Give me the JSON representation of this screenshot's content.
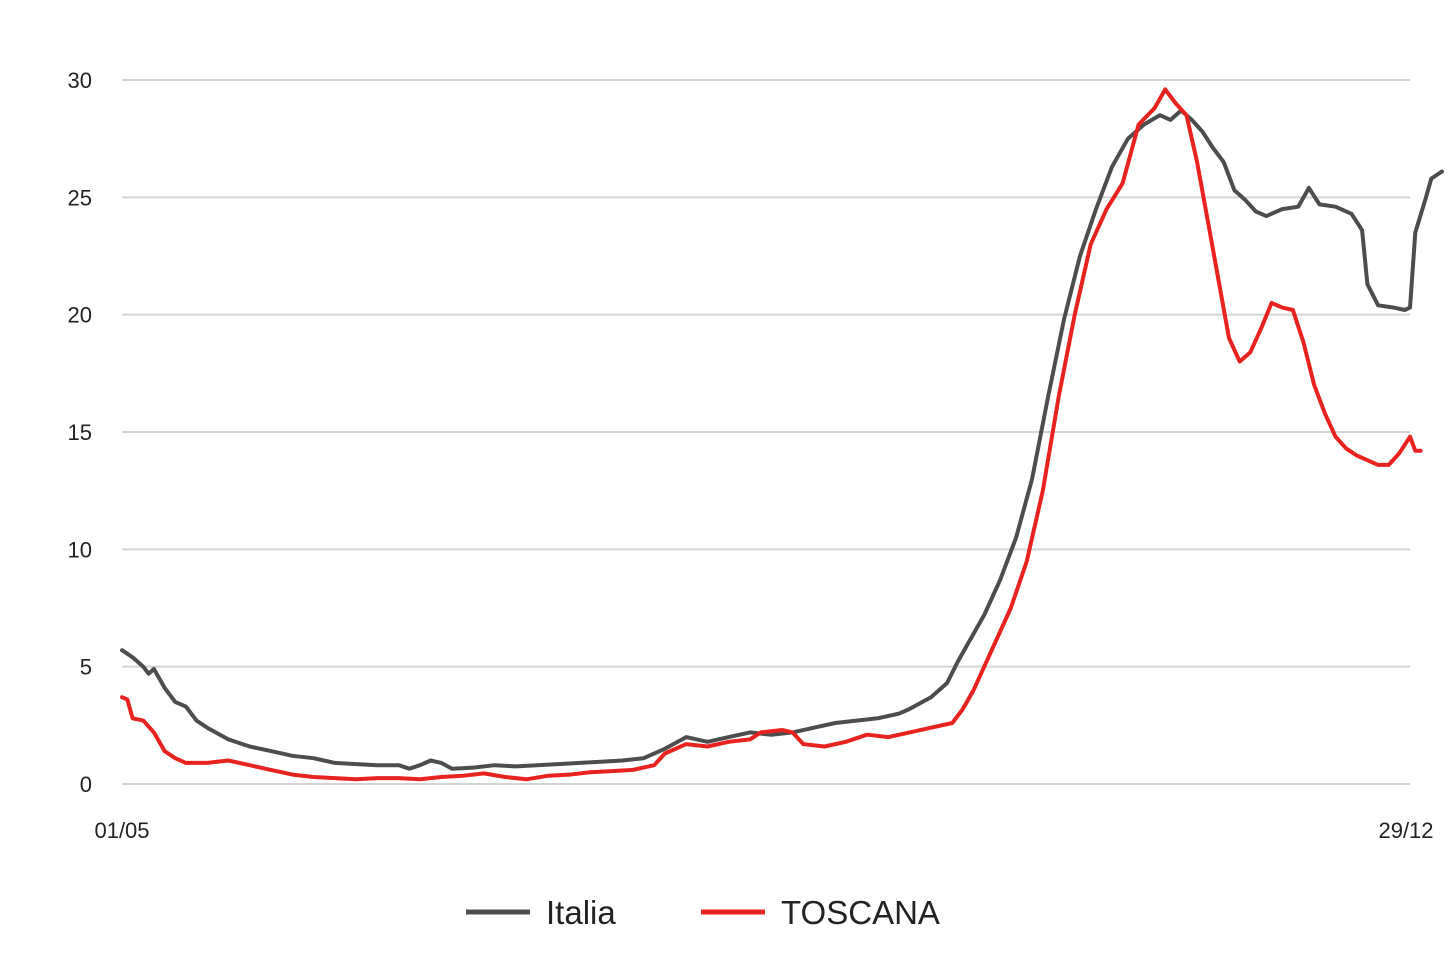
{
  "chart_data": {
    "type": "line",
    "x_tick_labels": [
      "01/05",
      "29/12"
    ],
    "x_range_days": [
      0,
      242
    ],
    "ylim": [
      0,
      30
    ],
    "y_ticks": [
      0,
      5,
      10,
      15,
      20,
      25,
      30
    ],
    "grid": "horizontal",
    "legend_position": "bottom",
    "series": [
      {
        "name": "Italia",
        "color": "#4d4d4d",
        "points": [
          [
            0,
            5.7
          ],
          [
            2,
            5.4
          ],
          [
            4,
            5.0
          ],
          [
            5,
            4.7
          ],
          [
            6,
            4.9
          ],
          [
            8,
            4.1
          ],
          [
            10,
            3.5
          ],
          [
            12,
            3.3
          ],
          [
            14,
            2.7
          ],
          [
            16,
            2.4
          ],
          [
            20,
            1.9
          ],
          [
            24,
            1.6
          ],
          [
            28,
            1.4
          ],
          [
            32,
            1.2
          ],
          [
            36,
            1.1
          ],
          [
            40,
            0.9
          ],
          [
            44,
            0.85
          ],
          [
            48,
            0.8
          ],
          [
            52,
            0.8
          ],
          [
            54,
            0.65
          ],
          [
            56,
            0.8
          ],
          [
            58,
            1.0
          ],
          [
            60,
            0.9
          ],
          [
            62,
            0.65
          ],
          [
            66,
            0.7
          ],
          [
            70,
            0.8
          ],
          [
            74,
            0.75
          ],
          [
            78,
            0.8
          ],
          [
            82,
            0.85
          ],
          [
            86,
            0.9
          ],
          [
            90,
            0.95
          ],
          [
            94,
            1.0
          ],
          [
            98,
            1.1
          ],
          [
            102,
            1.5
          ],
          [
            106,
            2.0
          ],
          [
            108,
            1.9
          ],
          [
            110,
            1.8
          ],
          [
            114,
            2.0
          ],
          [
            118,
            2.2
          ],
          [
            122,
            2.1
          ],
          [
            126,
            2.2
          ],
          [
            130,
            2.4
          ],
          [
            134,
            2.6
          ],
          [
            138,
            2.7
          ],
          [
            142,
            2.8
          ],
          [
            146,
            3.0
          ],
          [
            148,
            3.2
          ],
          [
            152,
            3.7
          ],
          [
            155,
            4.3
          ],
          [
            157,
            5.2
          ],
          [
            159,
            6.0
          ],
          [
            162,
            7.2
          ],
          [
            165,
            8.7
          ],
          [
            168,
            10.5
          ],
          [
            171,
            13.0
          ],
          [
            174,
            16.5
          ],
          [
            177,
            19.8
          ],
          [
            180,
            22.5
          ],
          [
            183,
            24.5
          ],
          [
            186,
            26.3
          ],
          [
            189,
            27.5
          ],
          [
            192,
            28.1
          ],
          [
            195,
            28.5
          ],
          [
            197,
            28.3
          ],
          [
            199,
            28.7
          ],
          [
            201,
            28.3
          ],
          [
            203,
            27.8
          ],
          [
            205,
            27.1
          ],
          [
            207,
            26.5
          ],
          [
            209,
            25.3
          ],
          [
            211,
            24.9
          ],
          [
            213,
            24.4
          ],
          [
            215,
            24.2
          ],
          [
            218,
            24.5
          ],
          [
            221,
            24.6
          ],
          [
            223,
            25.4
          ],
          [
            225,
            24.7
          ],
          [
            228,
            24.6
          ],
          [
            231,
            24.3
          ],
          [
            233,
            23.6
          ],
          [
            234,
            21.3
          ],
          [
            236,
            20.4
          ],
          [
            239,
            20.3
          ],
          [
            241,
            20.2
          ],
          [
            242,
            20.3
          ],
          [
            243,
            23.5
          ],
          [
            245,
            25.0
          ],
          [
            246,
            25.8
          ],
          [
            248,
            26.1
          ]
        ]
      },
      {
        "name": "TOSCANA",
        "color": "#e8231f",
        "points": [
          [
            0,
            3.7
          ],
          [
            1,
            3.6
          ],
          [
            2,
            2.8
          ],
          [
            4,
            2.7
          ],
          [
            6,
            2.2
          ],
          [
            8,
            1.4
          ],
          [
            10,
            1.1
          ],
          [
            12,
            0.9
          ],
          [
            16,
            0.9
          ],
          [
            20,
            1.0
          ],
          [
            24,
            0.8
          ],
          [
            28,
            0.6
          ],
          [
            32,
            0.4
          ],
          [
            36,
            0.3
          ],
          [
            40,
            0.25
          ],
          [
            44,
            0.2
          ],
          [
            48,
            0.25
          ],
          [
            52,
            0.25
          ],
          [
            56,
            0.2
          ],
          [
            60,
            0.3
          ],
          [
            64,
            0.35
          ],
          [
            68,
            0.45
          ],
          [
            72,
            0.3
          ],
          [
            76,
            0.2
          ],
          [
            80,
            0.35
          ],
          [
            84,
            0.4
          ],
          [
            88,
            0.5
          ],
          [
            92,
            0.55
          ],
          [
            96,
            0.6
          ],
          [
            100,
            0.8
          ],
          [
            102,
            1.3
          ],
          [
            106,
            1.7
          ],
          [
            110,
            1.6
          ],
          [
            114,
            1.8
          ],
          [
            118,
            1.9
          ],
          [
            120,
            2.2
          ],
          [
            124,
            2.3
          ],
          [
            126,
            2.2
          ],
          [
            128,
            1.7
          ],
          [
            132,
            1.6
          ],
          [
            136,
            1.8
          ],
          [
            140,
            2.1
          ],
          [
            144,
            2.0
          ],
          [
            148,
            2.2
          ],
          [
            152,
            2.4
          ],
          [
            156,
            2.6
          ],
          [
            158,
            3.2
          ],
          [
            160,
            4.0
          ],
          [
            162,
            5.0
          ],
          [
            164,
            6.0
          ],
          [
            167,
            7.5
          ],
          [
            170,
            9.5
          ],
          [
            173,
            12.5
          ],
          [
            176,
            16.5
          ],
          [
            179,
            20.0
          ],
          [
            182,
            23.0
          ],
          [
            185,
            24.5
          ],
          [
            188,
            25.6
          ],
          [
            191,
            28.1
          ],
          [
            194,
            28.8
          ],
          [
            196,
            29.6
          ],
          [
            198,
            29.0
          ],
          [
            200,
            28.5
          ],
          [
            202,
            26.5
          ],
          [
            204,
            24.0
          ],
          [
            206,
            21.5
          ],
          [
            208,
            19.0
          ],
          [
            210,
            18.0
          ],
          [
            212,
            18.4
          ],
          [
            214,
            19.4
          ],
          [
            216,
            20.5
          ],
          [
            218,
            20.3
          ],
          [
            220,
            20.2
          ],
          [
            222,
            18.8
          ],
          [
            224,
            17.0
          ],
          [
            226,
            15.8
          ],
          [
            228,
            14.8
          ],
          [
            230,
            14.3
          ],
          [
            232,
            14.0
          ],
          [
            234,
            13.8
          ],
          [
            236,
            13.6
          ],
          [
            238,
            13.6
          ],
          [
            240,
            14.1
          ],
          [
            242,
            14.8
          ],
          [
            243,
            14.2
          ],
          [
            244,
            14.2
          ]
        ]
      }
    ]
  }
}
